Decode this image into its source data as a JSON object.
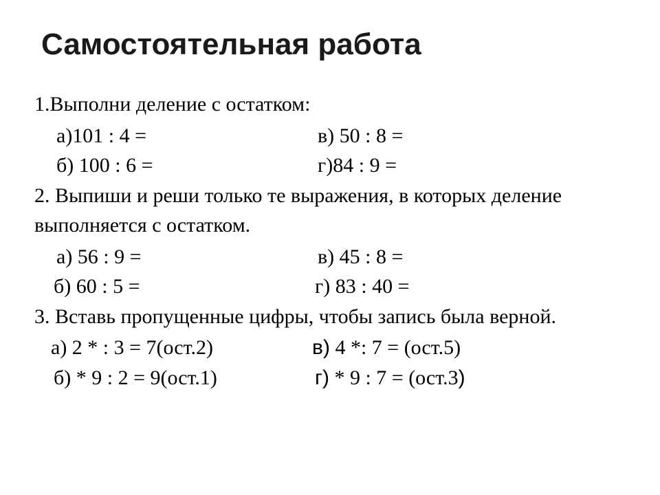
{
  "title": "Самостоятельная  работа",
  "task1": {
    "header": "1.Выполни деление с остатком:",
    "a": "а)101 : 4 =",
    "v": "в) 50 : 8 =",
    "b": "б) 100 : 6 =",
    "g": "г)84 : 9 ="
  },
  "task2": {
    "header": "2. Выпиши и реши только те выражения, в которых деление выполняется с остатком.",
    "a": "а) 56 : 9 =",
    "v": "в)  45 : 8 =",
    "b": "б) 60 : 5 =",
    "g": "г) 83 : 40 ="
  },
  "task3": {
    "header": "3. Вставь пропущенные цифры,  чтобы запись была верной.",
    "a": "а)  2 * : 3 =  7(ост.2)",
    "v_prefix": "в)",
    "v_rest": "  4 *: 7 =     (ост.5)",
    "b": "б) * 9 : 2 =  9(ост.1)",
    "g_prefix": "г)",
    "g_rest": " * 9 : 7 =    (ост.3",
    "g_close": ")"
  }
}
